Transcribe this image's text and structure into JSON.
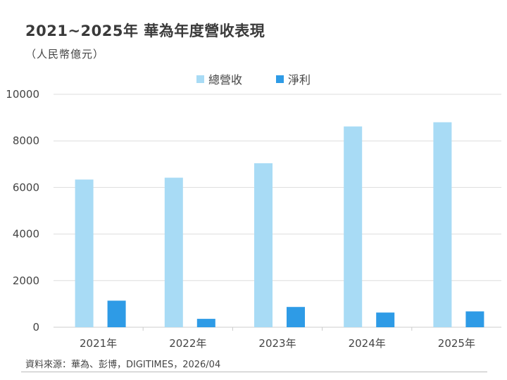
{
  "title": "2021~2025年 華為年度營收表現",
  "subtitle": "（人民幣億元）",
  "source": "資料來源：華為、彭博，DIGITIMES，2026/04",
  "colors": {
    "revenue": "#a8dbf5",
    "net_profit": "#2e9be6",
    "grid": "#dddddd",
    "axis": "#cccccc"
  },
  "chart_data": {
    "type": "bar",
    "title": "2021~2025年 華為年度營收表現",
    "subtitle": "（人民幣億元）",
    "xlabel": "",
    "ylabel": "",
    "ylim": [
      0,
      10000
    ],
    "yticks": [
      "0",
      "2000",
      "4000",
      "6000",
      "8000",
      "10000"
    ],
    "grid": true,
    "legend_position": "top-center",
    "categories": [
      "2021年",
      "2022年",
      "2023年",
      "2024年",
      "2025年"
    ],
    "series": [
      {
        "name": "總營收",
        "values": [
          6340,
          6420,
          7040,
          8620,
          8800
        ]
      },
      {
        "name": "淨利",
        "values": [
          1140,
          360,
          870,
          630,
          680
        ]
      }
    ]
  }
}
